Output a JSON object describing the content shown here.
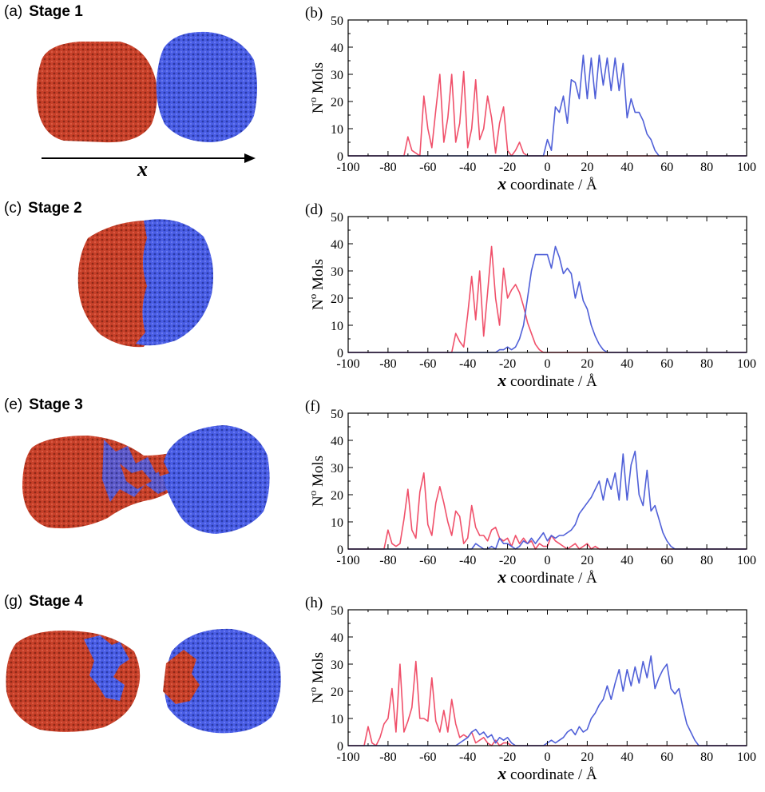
{
  "stages": [
    {
      "panel": "(a)",
      "title": "Stage 1"
    },
    {
      "panel": "(c)",
      "title": "Stage 2"
    },
    {
      "panel": "(e)",
      "title": "Stage 3"
    },
    {
      "panel": "(g)",
      "title": "Stage 4"
    }
  ],
  "axis_arrow_label": "x",
  "colors": {
    "red_cluster": "#c8412a",
    "blue_cluster": "#4a5ee6",
    "red_line": "#f0506a",
    "blue_line": "#5060d8"
  },
  "chart_data": [
    {
      "type": "line",
      "panel": "(b)",
      "xlabel_var": "x",
      "xlabel_text": "coordinate / Å",
      "ylabel_main": "N",
      "ylabel_sup": "o",
      "ylabel_tail": "Mols",
      "xlim": [
        -100,
        100
      ],
      "ylim": [
        0,
        50
      ],
      "xticks": [
        -100,
        -80,
        -60,
        -40,
        -20,
        0,
        20,
        40,
        60,
        80,
        100
      ],
      "yticks": [
        0,
        10,
        20,
        30,
        40,
        50
      ],
      "series": [
        {
          "color": "red",
          "x": [
            -100,
            -72,
            -70,
            -68,
            -64,
            -62,
            -60,
            -58,
            -56,
            -54,
            -52,
            -50,
            -48,
            -46,
            -44,
            -42,
            -40,
            -38,
            -36,
            -34,
            -32,
            -30,
            -28,
            -26,
            -24,
            -22,
            -20,
            -18,
            -16,
            -14,
            -12,
            -10,
            100
          ],
          "y": [
            0,
            0,
            7,
            2,
            0,
            22,
            10,
            3,
            17,
            30,
            5,
            14,
            30,
            5,
            12,
            31,
            3,
            10,
            28,
            6,
            10,
            22,
            14,
            1,
            12,
            18,
            2,
            0,
            2,
            5,
            1,
            0,
            0
          ]
        },
        {
          "color": "blue",
          "x": [
            -100,
            -2,
            0,
            2,
            4,
            6,
            8,
            10,
            12,
            14,
            16,
            18,
            20,
            22,
            24,
            26,
            28,
            30,
            32,
            34,
            36,
            38,
            40,
            42,
            44,
            46,
            48,
            50,
            52,
            54,
            56,
            100
          ],
          "y": [
            0,
            0,
            6,
            2,
            18,
            16,
            22,
            12,
            28,
            27,
            21,
            37,
            21,
            36,
            21,
            37,
            26,
            36,
            24,
            36,
            24,
            34,
            14,
            21,
            16,
            16,
            13,
            8,
            6,
            2,
            0,
            0
          ]
        }
      ]
    },
    {
      "type": "line",
      "panel": "(d)",
      "xlabel_var": "x",
      "xlabel_text": "coordinate /  Å",
      "ylabel_main": "N",
      "ylabel_sup": "o",
      "ylabel_tail": "Mols",
      "xlim": [
        -100,
        100
      ],
      "ylim": [
        0,
        50
      ],
      "xticks": [
        -100,
        -80,
        -60,
        -40,
        -20,
        0,
        20,
        40,
        60,
        80,
        100
      ],
      "yticks": [
        0,
        10,
        20,
        30,
        40,
        50
      ],
      "series": [
        {
          "color": "red",
          "x": [
            -100,
            -48,
            -46,
            -44,
            -42,
            -40,
            -38,
            -36,
            -34,
            -32,
            -30,
            -28,
            -26,
            -24,
            -22,
            -20,
            -18,
            -16,
            -14,
            -12,
            -10,
            -8,
            -6,
            -4,
            -2,
            100
          ],
          "y": [
            0,
            0,
            7,
            4,
            2,
            14,
            28,
            12,
            30,
            6,
            22,
            39,
            20,
            10,
            31,
            20,
            23,
            25,
            22,
            17,
            11,
            7,
            3,
            1,
            0,
            0
          ]
        },
        {
          "color": "blue",
          "x": [
            -100,
            -26,
            -24,
            -22,
            -20,
            -18,
            -16,
            -14,
            -12,
            -10,
            -8,
            -6,
            -4,
            -2,
            0,
            2,
            4,
            6,
            8,
            10,
            12,
            14,
            16,
            18,
            20,
            22,
            24,
            26,
            28,
            30,
            100
          ],
          "y": [
            0,
            0,
            1,
            1,
            2,
            1,
            2,
            5,
            10,
            20,
            30,
            36,
            36,
            36,
            36,
            31,
            39,
            35,
            29,
            31,
            29,
            20,
            26,
            19,
            16,
            10,
            6,
            3,
            1,
            0,
            0
          ]
        }
      ]
    },
    {
      "type": "line",
      "panel": "(f)",
      "xlabel_var": "x",
      "xlabel_text": "coordinate / Å",
      "ylabel_main": "N",
      "ylabel_sup": "o",
      "ylabel_tail": "Mols",
      "xlim": [
        -100,
        100
      ],
      "ylim": [
        0,
        50
      ],
      "xticks": [
        -100,
        -80,
        -60,
        -40,
        -20,
        0,
        20,
        40,
        60,
        80,
        100
      ],
      "yticks": [
        0,
        10,
        20,
        30,
        40,
        50
      ],
      "series": [
        {
          "color": "red",
          "x": [
            -100,
            -82,
            -80,
            -78,
            -76,
            -74,
            -72,
            -70,
            -68,
            -66,
            -64,
            -62,
            -60,
            -58,
            -56,
            -54,
            -52,
            -50,
            -48,
            -46,
            -44,
            -42,
            -40,
            -38,
            -36,
            -34,
            -32,
            -30,
            -28,
            -26,
            -24,
            -22,
            -20,
            -18,
            -16,
            -14,
            -12,
            -10,
            -8,
            -6,
            -4,
            -2,
            0,
            2,
            4,
            6,
            8,
            10,
            12,
            14,
            16,
            18,
            20,
            22,
            24,
            26,
            28,
            100
          ],
          "y": [
            0,
            0,
            7,
            2,
            1,
            2,
            11,
            22,
            7,
            4,
            21,
            28,
            9,
            5,
            17,
            23,
            17,
            10,
            5,
            14,
            12,
            2,
            4,
            16,
            8,
            5,
            5,
            3,
            7,
            8,
            4,
            3,
            4,
            1,
            5,
            2,
            4,
            2,
            3,
            0,
            2,
            1,
            1,
            5,
            3,
            2,
            1,
            0,
            1,
            2,
            0,
            1,
            2,
            0,
            1,
            0,
            0,
            0
          ]
        },
        {
          "color": "blue",
          "x": [
            -100,
            -38,
            -36,
            -34,
            -32,
            -30,
            -28,
            -26,
            -24,
            -22,
            -20,
            -18,
            -16,
            -14,
            -12,
            -10,
            -8,
            -6,
            -4,
            -2,
            0,
            2,
            4,
            6,
            8,
            10,
            12,
            14,
            16,
            18,
            20,
            22,
            24,
            26,
            28,
            30,
            32,
            34,
            36,
            38,
            40,
            42,
            44,
            46,
            48,
            50,
            52,
            54,
            56,
            58,
            60,
            62,
            64,
            100
          ],
          "y": [
            0,
            0,
            2,
            1,
            0,
            0,
            1,
            0,
            4,
            2,
            2,
            1,
            0,
            1,
            3,
            2,
            4,
            2,
            4,
            6,
            3,
            5,
            4,
            5,
            5,
            6,
            7,
            9,
            13,
            15,
            17,
            19,
            22,
            25,
            18,
            26,
            22,
            28,
            18,
            35,
            18,
            31,
            36,
            20,
            16,
            29,
            14,
            16,
            11,
            6,
            3,
            1,
            0,
            0
          ]
        }
      ]
    },
    {
      "type": "line",
      "panel": "(h)",
      "xlabel_var": "x",
      "xlabel_text": "coordinate /  Å",
      "ylabel_main": "N",
      "ylabel_sup": "o",
      "ylabel_tail": "Mols",
      "xlim": [
        -100,
        100
      ],
      "ylim": [
        0,
        50
      ],
      "xticks": [
        -100,
        -80,
        -60,
        -40,
        -20,
        0,
        20,
        40,
        60,
        80,
        100
      ],
      "yticks": [
        0,
        10,
        20,
        30,
        40,
        50
      ],
      "series": [
        {
          "color": "red",
          "x": [
            -100,
            -92,
            -90,
            -88,
            -86,
            -84,
            -82,
            -80,
            -78,
            -76,
            -74,
            -72,
            -70,
            -68,
            -66,
            -64,
            -62,
            -60,
            -58,
            -56,
            -54,
            -52,
            -50,
            -48,
            -46,
            -44,
            -42,
            -40,
            -38,
            -36,
            -34,
            -32,
            -30,
            -28,
            -26,
            -24,
            -22,
            -20,
            -18,
            100
          ],
          "y": [
            0,
            0,
            7,
            1,
            0,
            3,
            8,
            10,
            21,
            5,
            30,
            5,
            9,
            14,
            31,
            10,
            10,
            9,
            25,
            9,
            5,
            13,
            5,
            17,
            8,
            3,
            4,
            3,
            5,
            1,
            2,
            3,
            1,
            0,
            2,
            0,
            1,
            1,
            0,
            0
          ]
        },
        {
          "color": "blue",
          "x": [
            -100,
            -46,
            -44,
            -42,
            -40,
            -38,
            -36,
            -34,
            -32,
            -30,
            -28,
            -26,
            -24,
            -22,
            -20,
            -18,
            -16,
            -14,
            -12,
            -10,
            -8,
            -6,
            -4,
            -2,
            0,
            2,
            4,
            6,
            8,
            10,
            12,
            14,
            16,
            18,
            20,
            22,
            24,
            26,
            28,
            30,
            32,
            34,
            36,
            38,
            40,
            42,
            44,
            46,
            48,
            50,
            52,
            54,
            56,
            58,
            60,
            62,
            64,
            66,
            68,
            70,
            72,
            74,
            76,
            100
          ],
          "y": [
            0,
            0,
            1,
            2,
            3,
            5,
            6,
            4,
            5,
            3,
            4,
            1,
            3,
            2,
            3,
            1,
            0,
            0,
            0,
            0,
            0,
            0,
            0,
            0,
            1,
            2,
            1,
            2,
            3,
            5,
            6,
            4,
            7,
            5,
            6,
            10,
            12,
            15,
            17,
            22,
            17,
            23,
            28,
            20,
            28,
            22,
            29,
            23,
            31,
            25,
            33,
            21,
            25,
            28,
            30,
            21,
            19,
            21,
            14,
            8,
            5,
            2,
            0,
            0
          ]
        }
      ]
    }
  ]
}
